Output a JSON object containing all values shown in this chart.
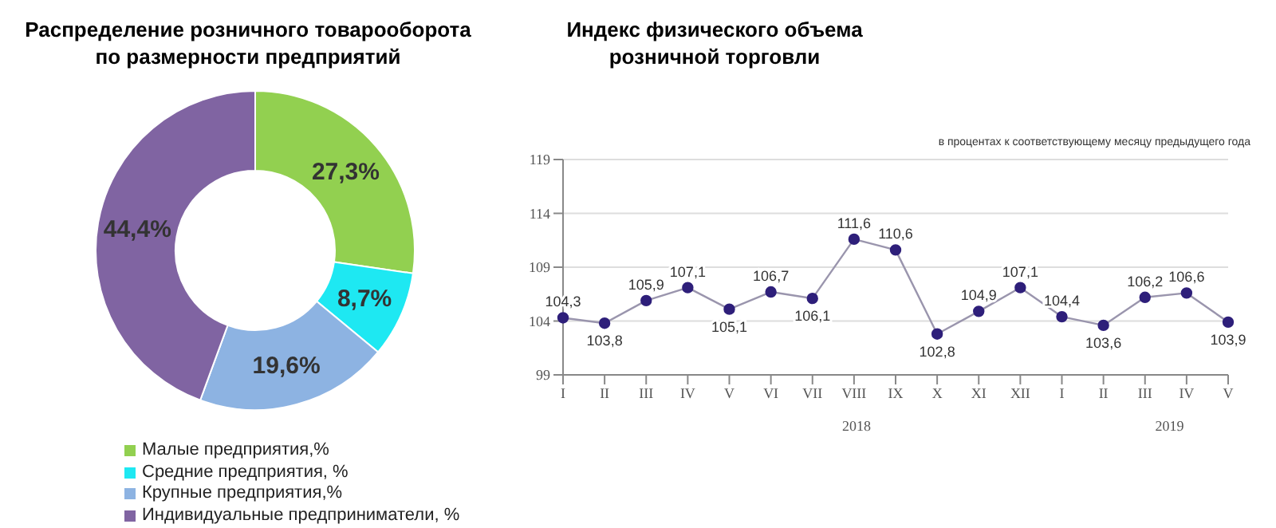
{
  "chart_data": [
    {
      "type": "donut",
      "title": "Распределение розничного товарооборота по размерности предприятий",
      "categories": [
        "Малые предприятия,%",
        "Средние предприятия, %",
        "Крупные предприятия,%",
        "Индивидуальные предприниматели, %"
      ],
      "values": [
        27.3,
        8.7,
        19.6,
        44.4
      ],
      "value_labels": [
        "27,3%",
        "8,7%",
        "19,6%",
        "44,4%"
      ],
      "colors": [
        "#92d050",
        "#1ee8f2",
        "#8db3e2",
        "#8064a2"
      ],
      "legend": "bottom"
    },
    {
      "type": "line",
      "title": "Индекс физического объема розничной торговли",
      "categories": [
        "I",
        "II",
        "III",
        "IV",
        "V",
        "VI",
        "VII",
        "VIII",
        "IX",
        "X",
        "XI",
        "XII",
        "I",
        "II",
        "III",
        "IV",
        "V"
      ],
      "series": [
        {
          "color": "#2e1f7a",
          "values": [
            104.3,
            103.8,
            105.9,
            107.1,
            105.1,
            106.7,
            106.1,
            111.6,
            110.6,
            102.8,
            104.9,
            107.1,
            104.4,
            103.6,
            106.2,
            106.6,
            103.9
          ],
          "value_labels": [
            "104,3",
            "103,8",
            "105,9",
            "107,1",
            "105,1",
            "106,7",
            "106,1",
            "111,6",
            "110,6",
            "102,8",
            "104,9",
            "107,1",
            "104,4",
            "103,6",
            "106,2",
            "106,6",
            "103,9"
          ]
        }
      ],
      "ylim": [
        99,
        119
      ],
      "yticks": [
        99,
        104,
        109,
        114,
        119
      ],
      "grid": "y",
      "marker": "circle",
      "annotations": [
        "в процентах к соответствующему месяцу предыдущего года",
        "2018",
        "2019"
      ]
    }
  ]
}
